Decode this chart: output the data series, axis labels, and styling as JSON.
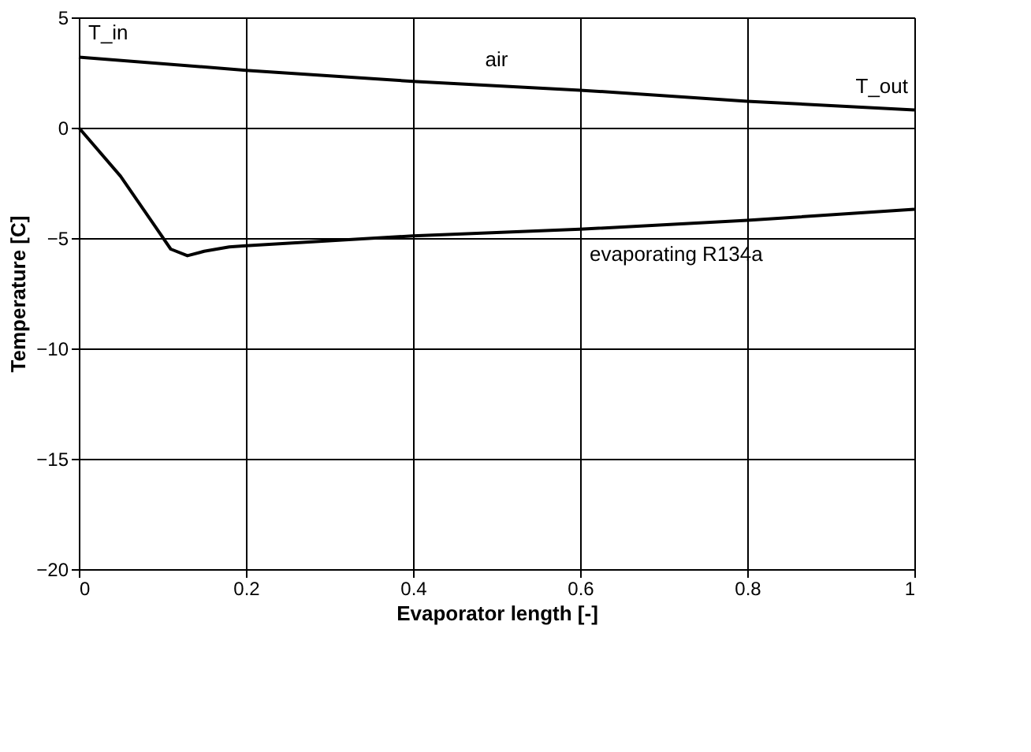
{
  "chart_data": {
    "type": "line",
    "xlabel": "Evaporator length [-]",
    "ylabel": "Temperature [C]",
    "xlim": [
      0,
      1
    ],
    "ylim": [
      -20,
      5
    ],
    "xticks": [
      0,
      0.2,
      0.4,
      0.6,
      0.8,
      1
    ],
    "yticks": [
      -20,
      -15,
      -10,
      -5,
      0,
      5
    ],
    "grid": true,
    "series": [
      {
        "color": "#000000",
        "x": [
          0,
          0.2,
          0.4,
          0.6,
          0.8,
          1
        ],
        "values": [
          3.2,
          2.6,
          2.1,
          1.7,
          1.2,
          0.8
        ]
      },
      {
        "color": "#000000",
        "x": [
          0,
          0.05,
          0.09,
          0.11,
          0.13,
          0.15,
          0.18,
          0.2,
          0.4,
          0.6,
          0.8,
          1
        ],
        "values": [
          0,
          -2.2,
          -4.4,
          -5.5,
          -5.8,
          -5.6,
          -5.4,
          -5.35,
          -4.9,
          -4.6,
          -4.2,
          -3.7
        ]
      }
    ],
    "annotations": [
      {
        "text": "T_in",
        "x": 0,
        "y": 3.2
      },
      {
        "text": "air",
        "x": 0.5,
        "y": 2
      },
      {
        "text": "T_out",
        "x": 1,
        "y": 0.8
      },
      {
        "text": "evaporating R134a",
        "x": 0.6,
        "y": -4.6
      }
    ]
  }
}
